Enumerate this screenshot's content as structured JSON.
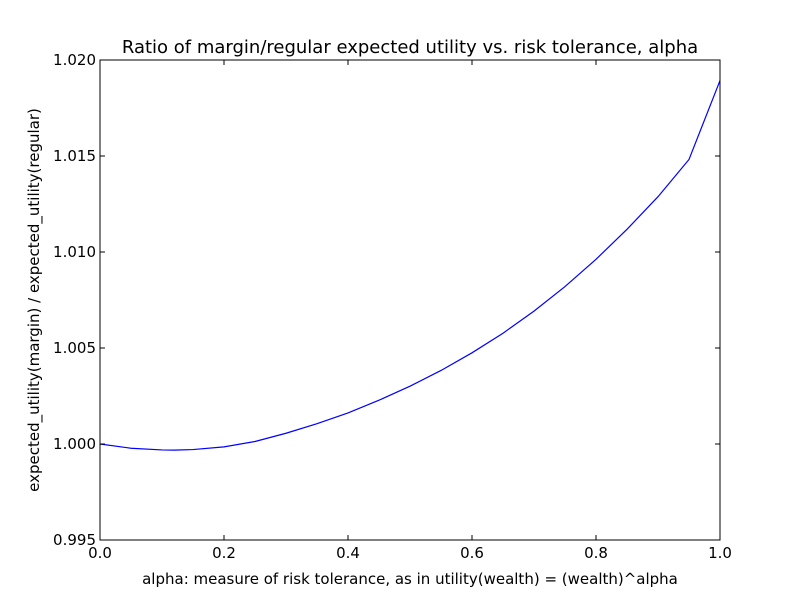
{
  "chart_data": {
    "type": "line",
    "title": "Ratio of margin/regular expected utility vs. risk tolerance, alpha",
    "xlabel": "alpha: measure of risk tolerance, as in utility(wealth) = (wealth)^alpha",
    "ylabel": "expected_utility(margin) / expected_utility(regular)",
    "xlim": [
      0.0,
      1.0
    ],
    "ylim": [
      0.995,
      1.02
    ],
    "xticks": [
      "0.0",
      "0.2",
      "0.4",
      "0.6",
      "0.8",
      "1.0"
    ],
    "yticks": [
      "0.995",
      "1.000",
      "1.005",
      "1.010",
      "1.015",
      "1.020"
    ],
    "grid": false,
    "line_color": "#0000ff",
    "series": [
      {
        "x": [
          0.0,
          0.05,
          0.1,
          0.12,
          0.15,
          0.2,
          0.25,
          0.3,
          0.35,
          0.4,
          0.45,
          0.5,
          0.55,
          0.6,
          0.65,
          0.7,
          0.75,
          0.8,
          0.85,
          0.9,
          0.95,
          1.0
        ],
        "y": [
          1.0,
          0.99978,
          0.99969,
          0.99968,
          0.99971,
          0.99985,
          1.00013,
          1.00056,
          1.00106,
          1.00162,
          1.00228,
          1.00301,
          1.00383,
          1.00475,
          1.00577,
          1.00692,
          1.0082,
          1.00962,
          1.01118,
          1.01288,
          1.01482,
          1.01893
        ]
      }
    ]
  }
}
